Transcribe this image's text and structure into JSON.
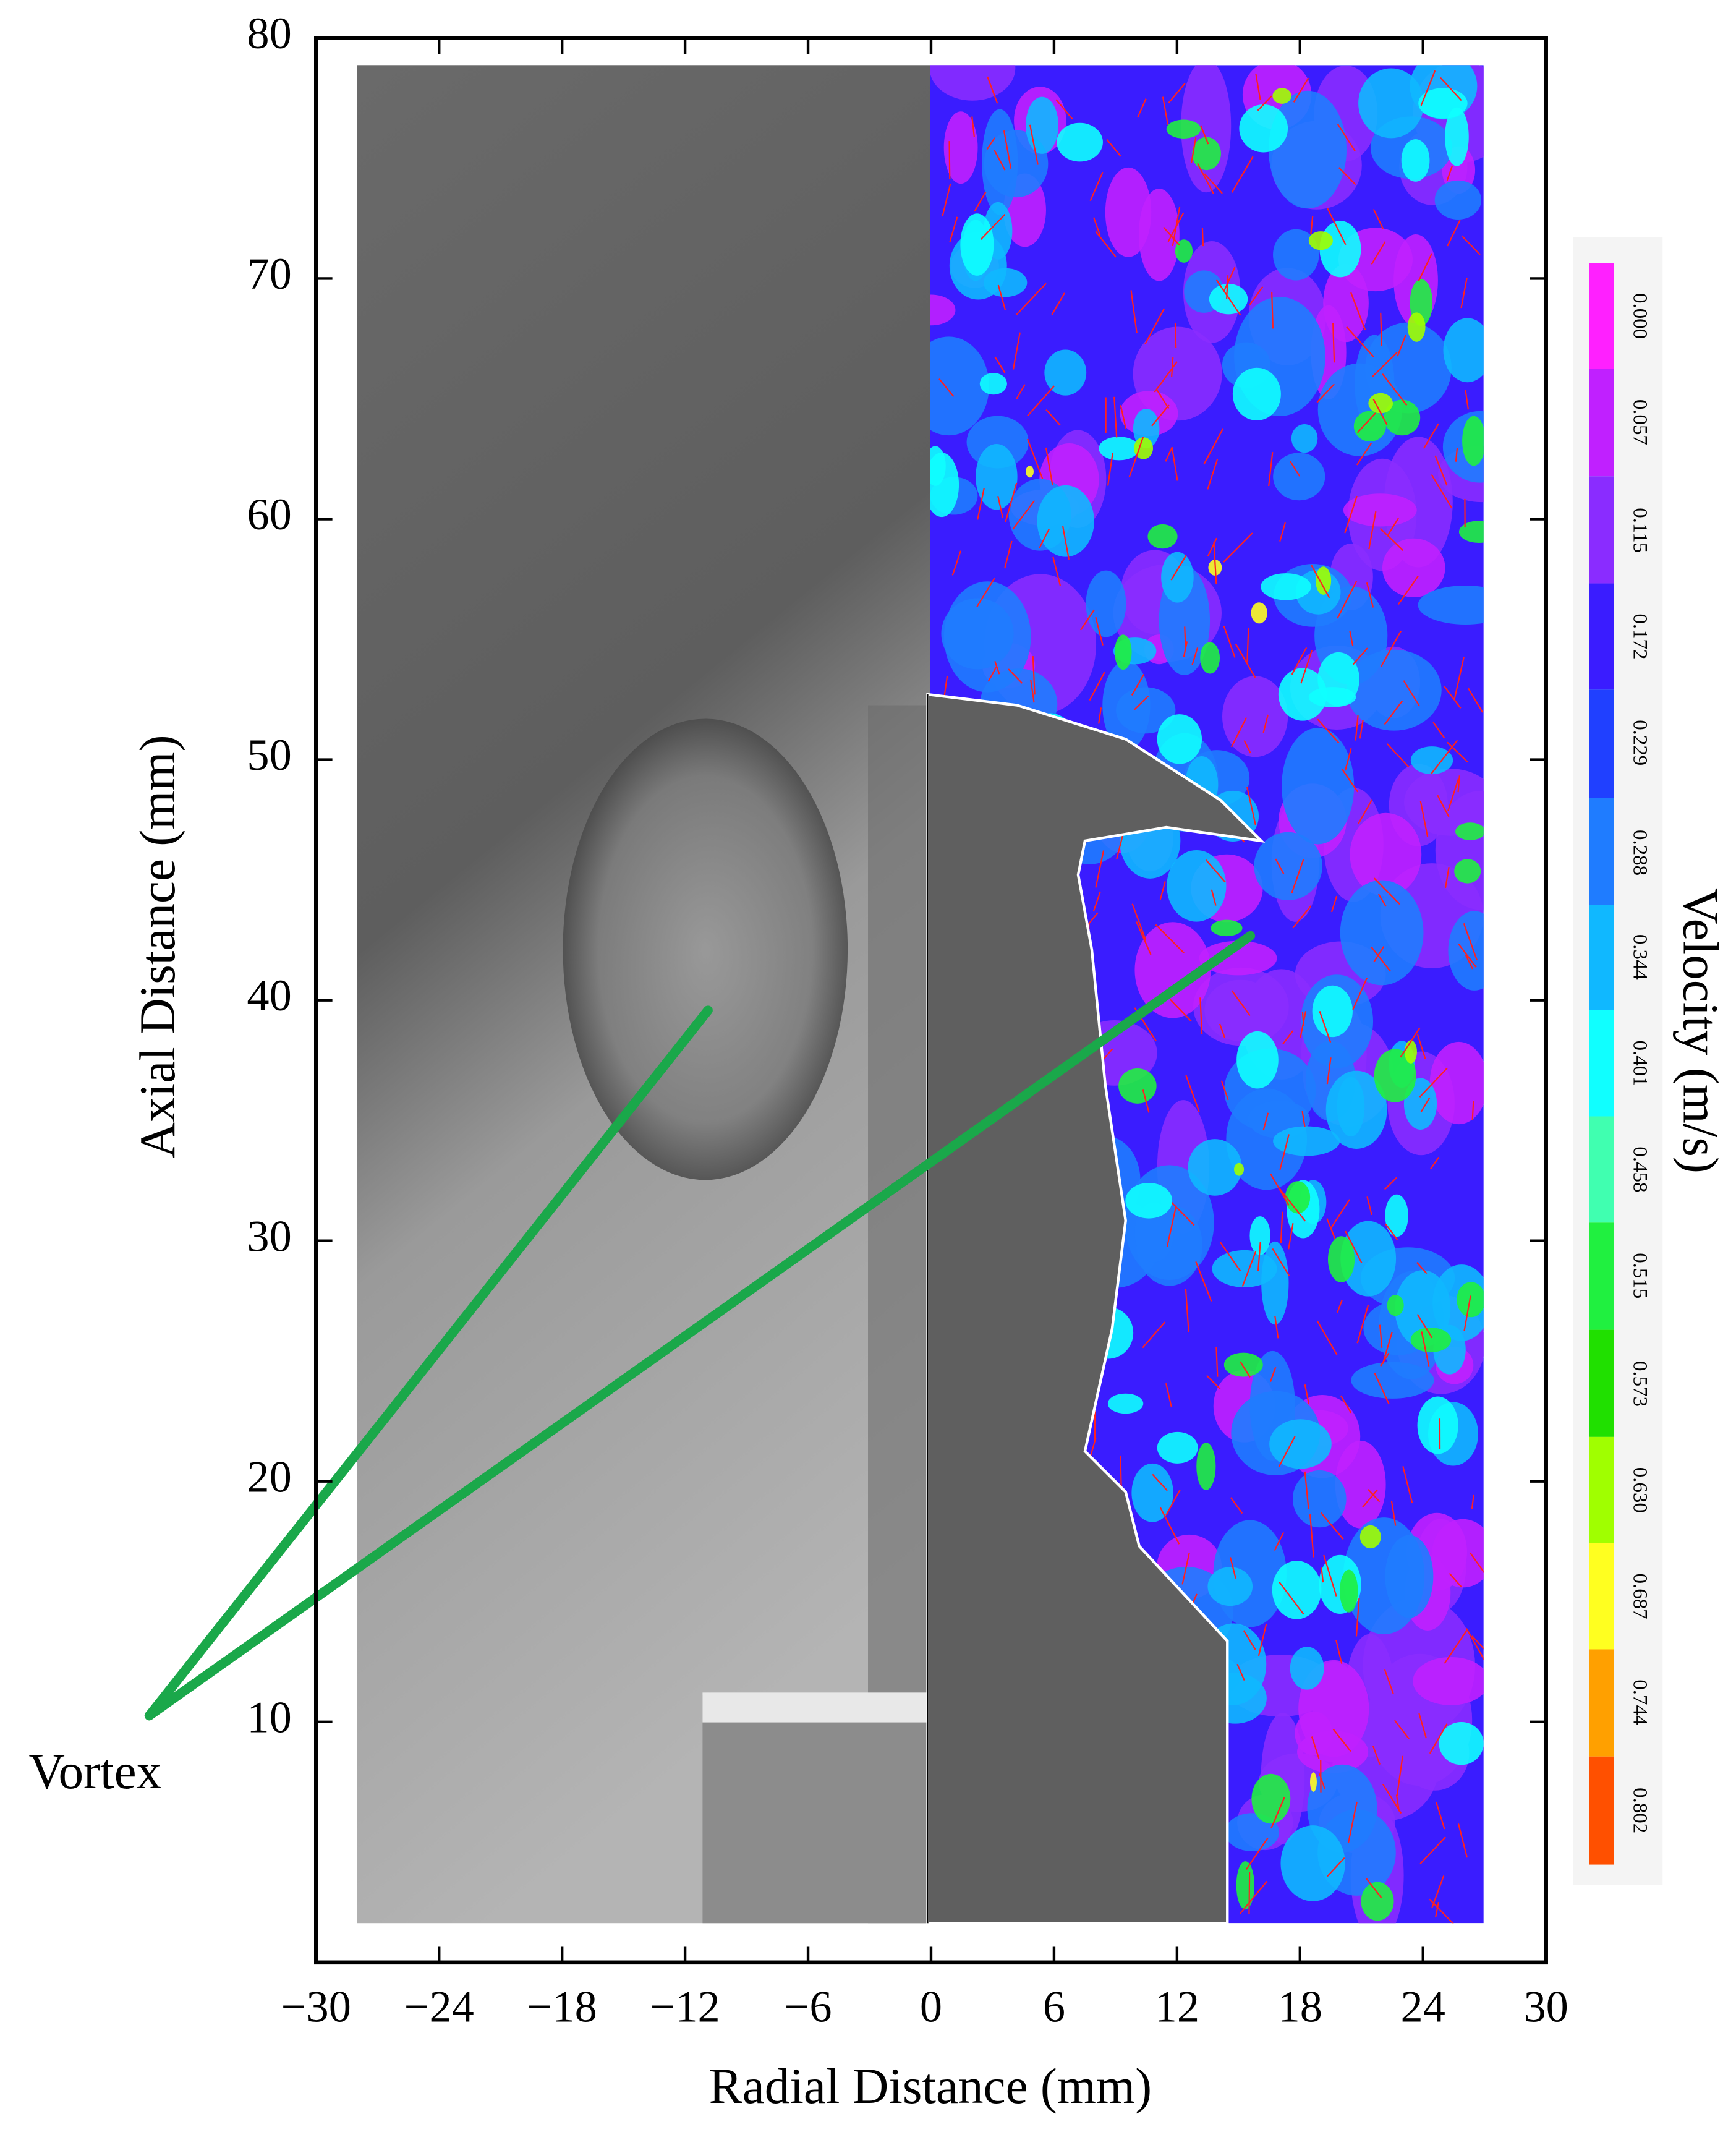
{
  "chart_data": {
    "type": "image",
    "x_label": "Radial Distance (mm)",
    "y_label": "Axial Distance (mm)",
    "xlim": [
      -30,
      30
    ],
    "ylim": [
      0,
      80
    ],
    "xticks": [
      {
        "value": -30,
        "label": "−30"
      },
      {
        "value": -24,
        "label": "−24"
      },
      {
        "value": -18,
        "label": "−18"
      },
      {
        "value": -12,
        "label": "−12"
      },
      {
        "value": -6,
        "label": "−6"
      },
      0,
      6,
      12,
      18,
      24,
      30
    ],
    "yticks": [
      10,
      20,
      30,
      40,
      50,
      60,
      70,
      80
    ],
    "colorbar": {
      "label": "Velocity (m/s)",
      "ticks": [
        {
          "value": 0,
          "label": "0.000"
        },
        {
          "value": 0.057,
          "label": "0.057"
        },
        {
          "value": 0.115,
          "label": "0.115"
        },
        {
          "value": 0.172,
          "label": "0.172"
        },
        {
          "value": 0.229,
          "label": "0.229"
        },
        {
          "value": 0.288,
          "label": "0.288"
        },
        {
          "value": 0.344,
          "label": "0.344"
        },
        {
          "value": 0.401,
          "label": "0.401"
        },
        {
          "value": 0.458,
          "label": "0.458"
        },
        {
          "value": 0.515,
          "label": "0.515"
        },
        {
          "value": 0.573,
          "label": "0.573"
        },
        {
          "value": 0.63,
          "label": "0.630"
        },
        {
          "value": 0.687,
          "label": "0.687"
        },
        {
          "value": 0.744,
          "label": "0.744"
        },
        {
          "value": 0.802,
          "label": "0.802"
        }
      ],
      "colors": [
        "#ff20ff",
        "#c020ff",
        "#8a2cff",
        "#3a1cff",
        "#2040ff",
        "#1f7cff",
        "#10b8ff",
        "#10ffff",
        "#40ffb0",
        "#20f040",
        "#20e000",
        "#a0ff00",
        "#ffff20",
        "#ffa000",
        "#ff5000"
      ]
    },
    "annotations": [
      {
        "text": "Vortex"
      }
    ]
  }
}
